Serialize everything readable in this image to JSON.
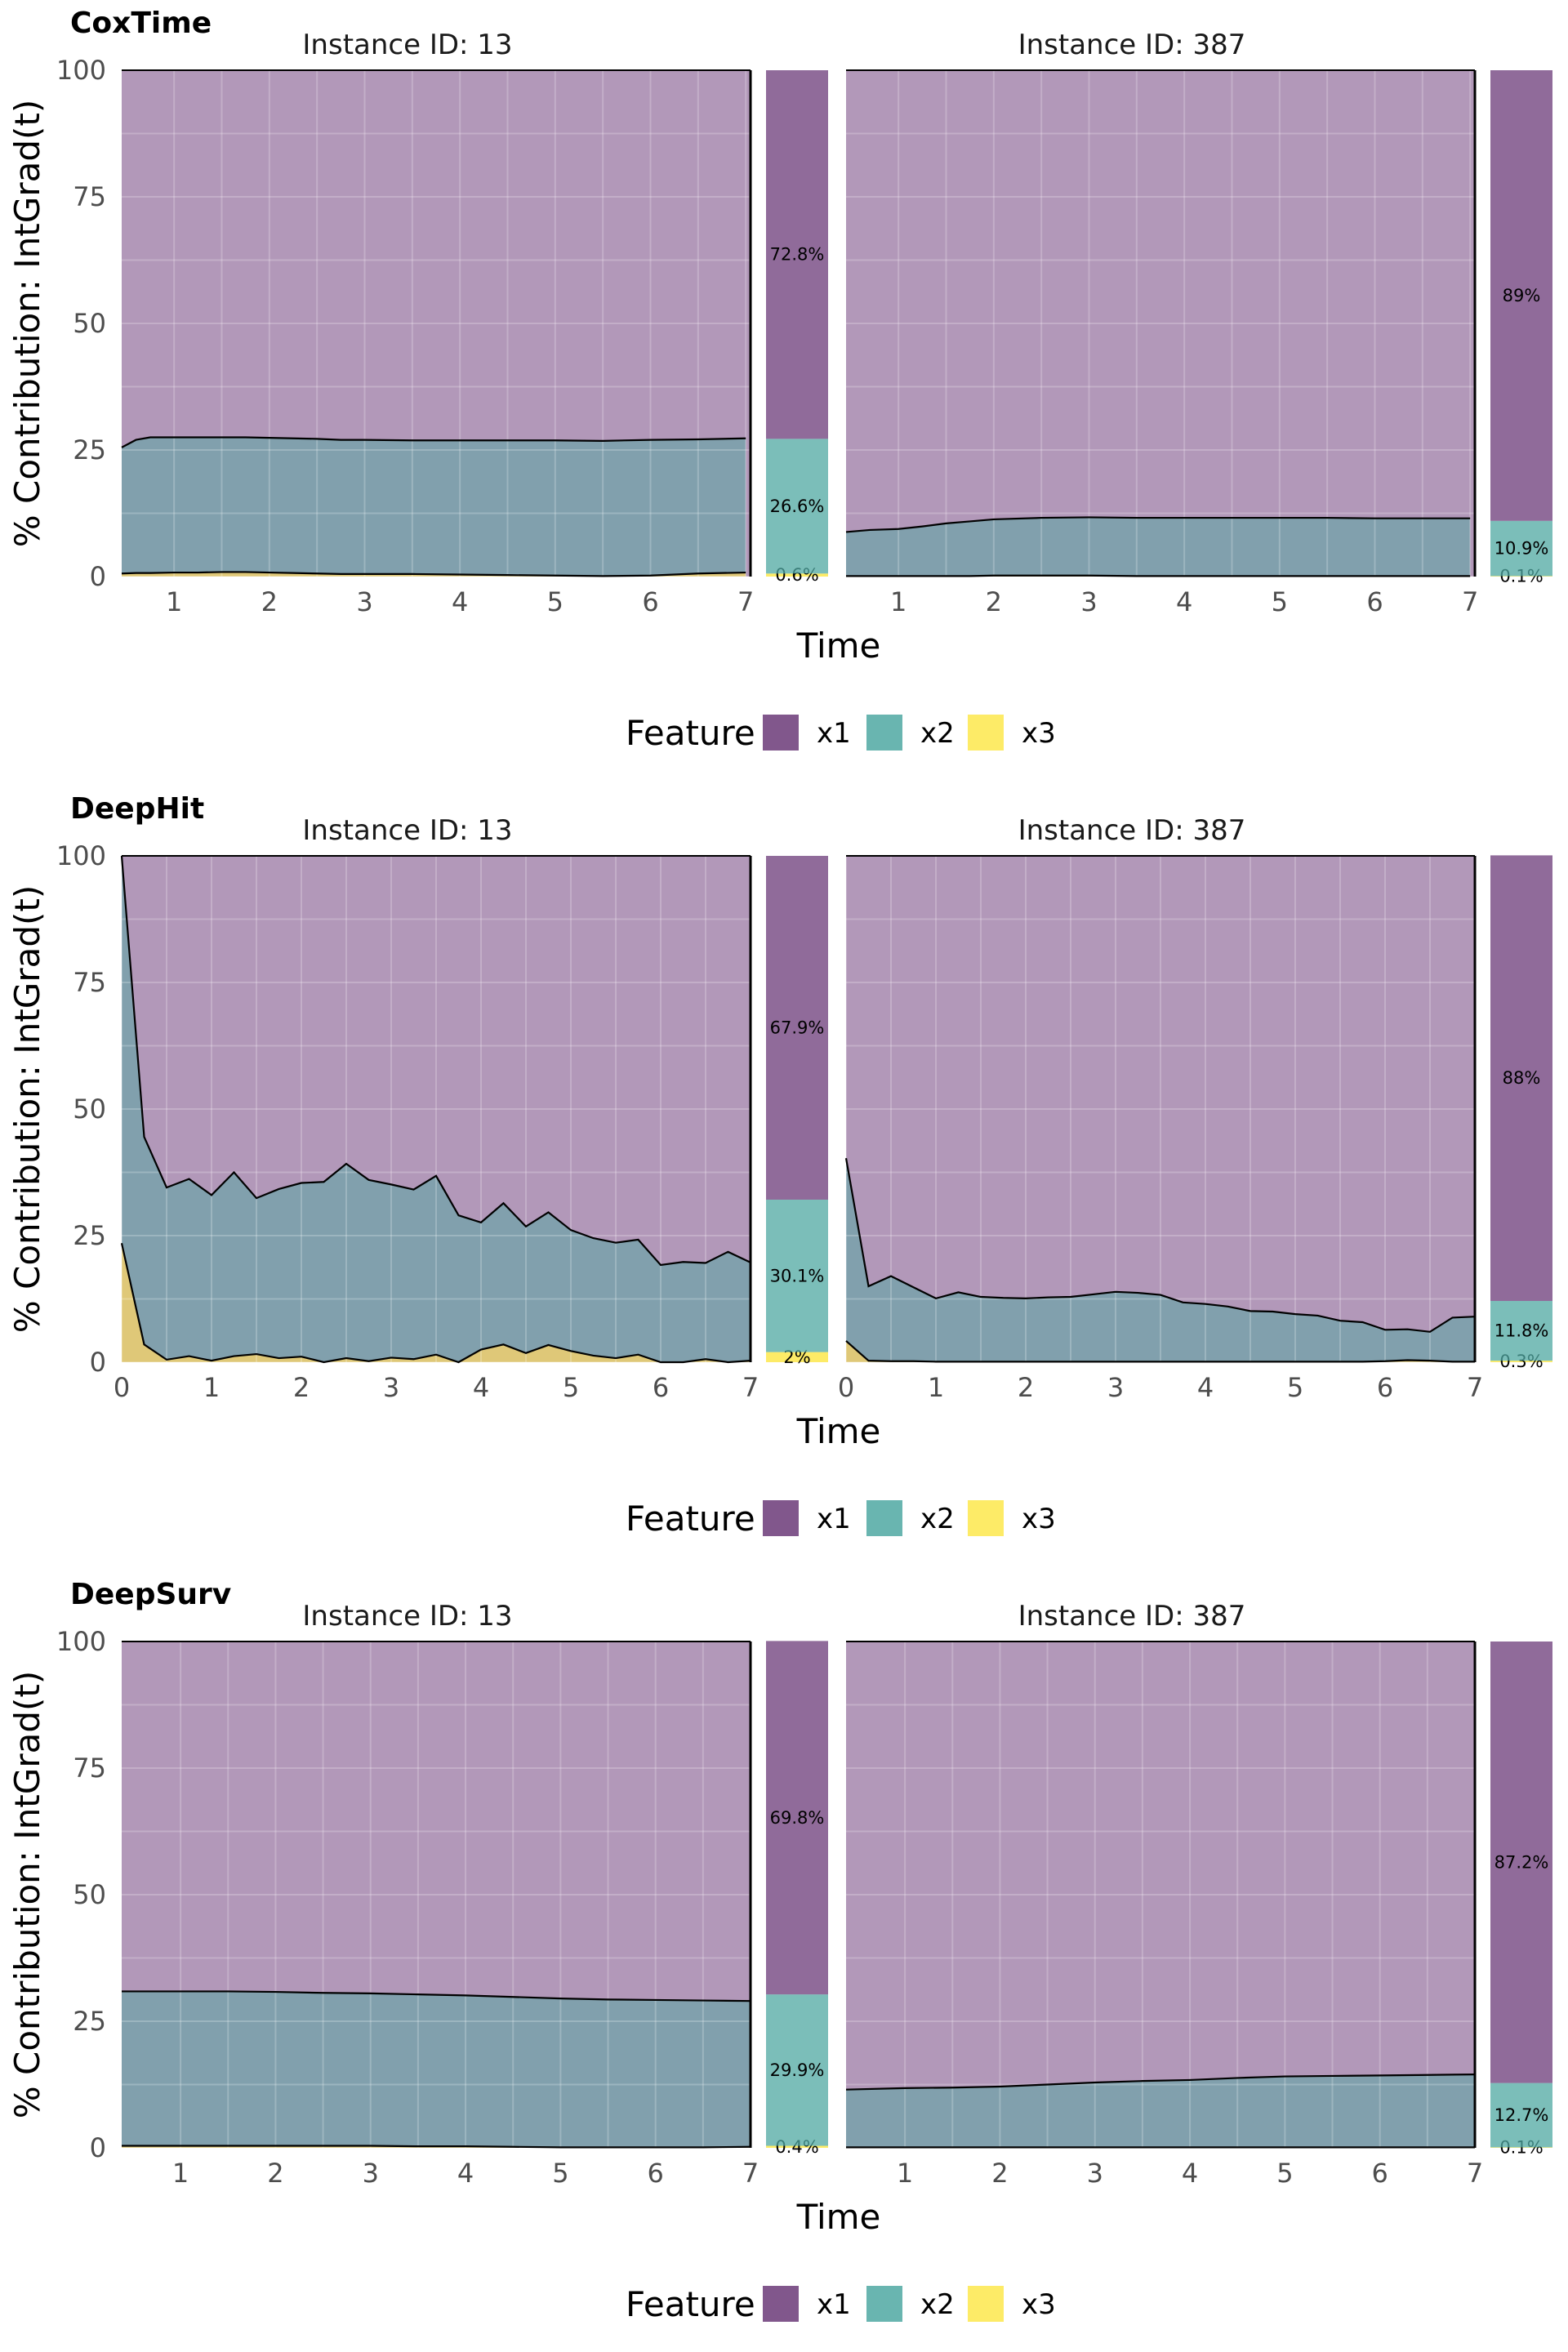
{
  "colors": {
    "x1": "#6b3a78",
    "x2": "#4fa8a2",
    "x3": "#fde74c",
    "grid": "#ffffff",
    "line": "#000000"
  },
  "legend": {
    "title": "Feature",
    "items": [
      "x1",
      "x2",
      "x3"
    ]
  },
  "chart_data": [
    {
      "type": "area",
      "title": "CoxTime",
      "ylabel": "% Contribution: IntGrad(t)",
      "xlabel": "Time",
      "ylim": [
        0,
        100
      ],
      "yticks": [
        "0",
        "25",
        "50",
        "75",
        "100"
      ],
      "xticks": [
        "1",
        "2",
        "3",
        "4",
        "5",
        "6",
        "7"
      ],
      "panels": [
        {
          "strip": "Instance ID: 13",
          "xlim": [
            0.45,
            7.05
          ],
          "x": [
            0.45,
            0.6,
            0.75,
            1.0,
            1.25,
            1.5,
            1.75,
            2.0,
            2.25,
            2.5,
            2.75,
            3.0,
            3.5,
            4.0,
            4.5,
            5.0,
            5.5,
            6.0,
            6.5,
            7.0
          ],
          "stack_x3": [
            0.6,
            0.7,
            0.7,
            0.8,
            0.8,
            0.9,
            0.9,
            0.8,
            0.7,
            0.6,
            0.5,
            0.5,
            0.5,
            0.4,
            0.3,
            0.2,
            0.1,
            0.2,
            0.6,
            0.8
          ],
          "stack_x2x3": [
            25.5,
            27.0,
            27.5,
            27.5,
            27.5,
            27.5,
            27.5,
            27.4,
            27.3,
            27.2,
            27.0,
            27.0,
            26.9,
            26.9,
            26.9,
            26.9,
            26.8,
            27.0,
            27.1,
            27.3
          ],
          "bar": [
            {
              "feature": "x1",
              "value": 72.8,
              "label": "72.8%"
            },
            {
              "feature": "x2",
              "value": 26.6,
              "label": "26.6%"
            },
            {
              "feature": "x3",
              "value": 0.6,
              "label": "0.6%"
            }
          ]
        },
        {
          "strip": "Instance ID: 387",
          "xlim": [
            0.45,
            7.05
          ],
          "x": [
            0.45,
            0.7,
            1.0,
            1.25,
            1.5,
            1.75,
            2.0,
            2.5,
            3.0,
            3.5,
            4.0,
            4.5,
            5.0,
            5.5,
            6.0,
            6.5,
            7.0
          ],
          "stack_x3": [
            0.1,
            0.1,
            0.1,
            0.1,
            0.1,
            0.1,
            0.2,
            0.2,
            0.2,
            0.1,
            0.1,
            0.1,
            0.1,
            0.1,
            0.1,
            0.1,
            0.1
          ],
          "stack_x2x3": [
            8.8,
            9.2,
            9.4,
            9.9,
            10.5,
            10.9,
            11.3,
            11.6,
            11.7,
            11.6,
            11.6,
            11.6,
            11.6,
            11.6,
            11.5,
            11.5,
            11.5
          ],
          "bar": [
            {
              "feature": "x1",
              "value": 89.0,
              "label": "89%"
            },
            {
              "feature": "x2",
              "value": 10.9,
              "label": "10.9%"
            },
            {
              "feature": "x3",
              "value": 0.1,
              "label": "0.1%"
            }
          ]
        }
      ]
    },
    {
      "type": "area",
      "title": "DeepHit",
      "ylabel": "% Contribution: IntGrad(t)",
      "xlabel": "Time",
      "ylim": [
        0,
        100
      ],
      "yticks": [
        "0",
        "25",
        "50",
        "75",
        "100"
      ],
      "xticks": [
        "0",
        "1",
        "2",
        "3",
        "4",
        "5",
        "6",
        "7"
      ],
      "panels": [
        {
          "strip": "Instance ID: 13",
          "xlim": [
            0,
            7
          ],
          "x": [
            0,
            0.25,
            0.5,
            0.75,
            1.0,
            1.25,
            1.5,
            1.75,
            2.0,
            2.25,
            2.5,
            2.75,
            3.0,
            3.25,
            3.5,
            3.75,
            4.0,
            4.25,
            4.5,
            4.75,
            5.0,
            5.25,
            5.5,
            5.75,
            6.0,
            6.25,
            6.5,
            6.75,
            7.0
          ],
          "stack_x3": [
            23.5,
            3.5,
            0.5,
            1.2,
            0.3,
            1.2,
            1.6,
            0.8,
            1.1,
            0,
            0.8,
            0.2,
            0.9,
            0.6,
            1.5,
            0,
            2.5,
            3.5,
            1.8,
            3.4,
            2.2,
            1.3,
            0.8,
            1.5,
            0,
            0,
            0.6,
            0,
            0.3
          ],
          "stack_x2x3": [
            100,
            44.5,
            34.5,
            36.2,
            33.0,
            37.5,
            32.4,
            34.2,
            35.4,
            35.6,
            39.2,
            36.0,
            35.1,
            34.1,
            36.8,
            29.0,
            27.6,
            31.4,
            26.8,
            29.6,
            26.1,
            24.5,
            23.6,
            24.2,
            19.2,
            19.8,
            19.6,
            21.8,
            19.7
          ],
          "bar": [
            {
              "feature": "x1",
              "value": 67.9,
              "label": "67.9%"
            },
            {
              "feature": "x2",
              "value": 30.1,
              "label": "30.1%"
            },
            {
              "feature": "x3",
              "value": 2.0,
              "label": "2%"
            }
          ]
        },
        {
          "strip": "Instance ID: 387",
          "xlim": [
            0,
            7
          ],
          "x": [
            0,
            0.25,
            0.5,
            0.75,
            1.0,
            1.25,
            1.5,
            1.75,
            2.0,
            2.25,
            2.5,
            2.75,
            3.0,
            3.25,
            3.5,
            3.75,
            4.0,
            4.25,
            4.5,
            4.75,
            5.0,
            5.25,
            5.5,
            5.75,
            6.0,
            6.25,
            6.5,
            6.75,
            7.0
          ],
          "stack_x3": [
            4.2,
            0.3,
            0.2,
            0.2,
            0.1,
            0.1,
            0.1,
            0.1,
            0.1,
            0.1,
            0.1,
            0.1,
            0.1,
            0.1,
            0.1,
            0.1,
            0.1,
            0.1,
            0.1,
            0.1,
            0.1,
            0.1,
            0.1,
            0.1,
            0.2,
            0.4,
            0.3,
            0.1,
            0.1
          ],
          "stack_x2x3": [
            40.3,
            15.0,
            17.0,
            14.8,
            12.6,
            13.8,
            12.9,
            12.7,
            12.6,
            12.8,
            12.9,
            13.4,
            13.9,
            13.7,
            13.3,
            11.8,
            11.5,
            11.0,
            10.1,
            10.0,
            9.5,
            9.2,
            8.2,
            7.9,
            6.4,
            6.5,
            6.0,
            8.8,
            9.0
          ],
          "bar": [
            {
              "feature": "x1",
              "value": 88.0,
              "label": "88%"
            },
            {
              "feature": "x2",
              "value": 11.8,
              "label": "11.8%"
            },
            {
              "feature": "x3",
              "value": 0.3,
              "label": "0.3%"
            }
          ]
        }
      ]
    },
    {
      "type": "area",
      "title": "DeepSurv",
      "ylabel": "% Contribution: IntGrad(t)",
      "xlabel": "Time",
      "ylim": [
        0,
        100
      ],
      "yticks": [
        "0",
        "25",
        "50",
        "75",
        "100"
      ],
      "xticks": [
        "1",
        "2",
        "3",
        "4",
        "5",
        "6",
        "7"
      ],
      "panels": [
        {
          "strip": "Instance ID: 13",
          "xlim": [
            0.38,
            7.0
          ],
          "x": [
            0.38,
            1.0,
            1.5,
            2.0,
            2.5,
            3.0,
            3.5,
            4.0,
            4.5,
            5.0,
            5.5,
            6.0,
            6.5,
            7.0
          ],
          "stack_x3": [
            0.4,
            0.4,
            0.4,
            0.4,
            0.4,
            0.4,
            0.3,
            0.3,
            0.2,
            0.1,
            0.1,
            0.1,
            0.1,
            0.2
          ],
          "stack_x2x3": [
            30.9,
            30.9,
            30.9,
            30.8,
            30.6,
            30.5,
            30.3,
            30.1,
            29.8,
            29.5,
            29.3,
            29.2,
            29.1,
            29.0
          ],
          "bar": [
            {
              "feature": "x1",
              "value": 69.8,
              "label": "69.8%"
            },
            {
              "feature": "x2",
              "value": 29.9,
              "label": "29.9%"
            },
            {
              "feature": "x3",
              "value": 0.4,
              "label": "0.4%"
            }
          ]
        },
        {
          "strip": "Instance ID: 387",
          "xlim": [
            0.38,
            7.0
          ],
          "x": [
            0.38,
            1.0,
            1.5,
            2.0,
            2.5,
            3.0,
            3.5,
            4.0,
            4.5,
            5.0,
            5.5,
            6.0,
            6.5,
            7.0
          ],
          "stack_x3": [
            0.1,
            0.1,
            0.1,
            0.1,
            0.1,
            0.1,
            0.1,
            0.1,
            0.1,
            0.1,
            0.1,
            0.1,
            0.1,
            0.1
          ],
          "stack_x2x3": [
            11.5,
            11.8,
            11.9,
            12.1,
            12.5,
            12.9,
            13.2,
            13.4,
            13.8,
            14.1,
            14.2,
            14.3,
            14.4,
            14.5
          ],
          "bar": [
            {
              "feature": "x1",
              "value": 87.2,
              "label": "87.2%"
            },
            {
              "feature": "x2",
              "value": 12.7,
              "label": "12.7%"
            },
            {
              "feature": "x3",
              "value": 0.1,
              "label": "0.1%"
            }
          ]
        }
      ]
    }
  ]
}
